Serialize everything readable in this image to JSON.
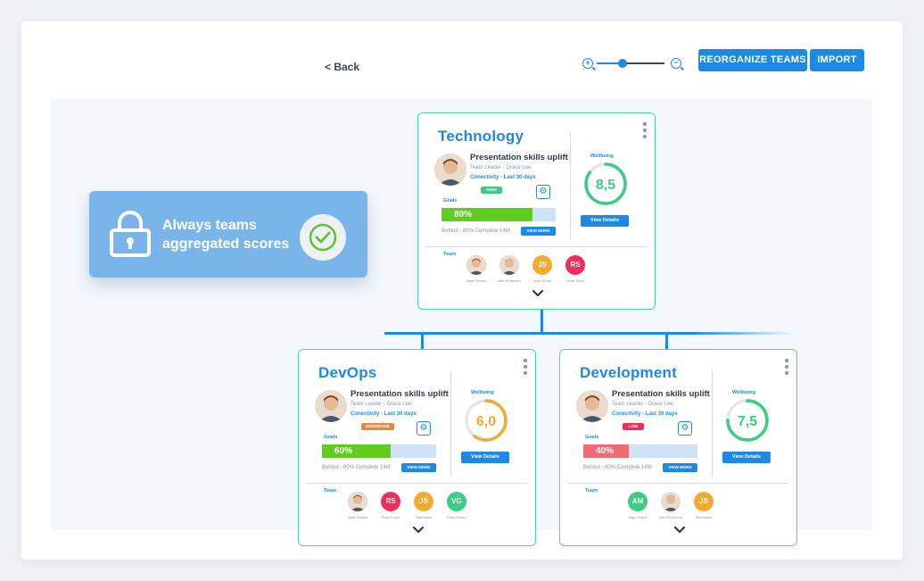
{
  "header": {
    "back_label": "< Back",
    "zoom_level": 0.38,
    "reorganize_label": "REORGANIZE TEAMS",
    "import_label": "IMPORT",
    "zoom_in_icon": "zoom-in-icon",
    "zoom_out_icon": "zoom-out-icon"
  },
  "lock_card": {
    "text_line1": "Always teams",
    "text_line2": "aggregated scores",
    "lock_icon": "lock-icon",
    "check_icon": "check-circle-icon"
  },
  "colors": {
    "accent": "#1e88e5",
    "card_border": "#4cd59a",
    "green": "#3ecb82",
    "orange": "#f2ab30",
    "red": "#ef6a72",
    "lock_card": "#7ab5ea"
  },
  "teams": [
    {
      "title": "Technology",
      "skill": "Presentation skills uplift",
      "leader": "Team Leader - Grace Lee",
      "connectivity": "Conectivity - Last 30 days",
      "badge": "HIGH",
      "badge_color": "#3ecb82",
      "goals_label": "Goals",
      "goal_value": "80%",
      "goal_fraction": 0.8,
      "goal_color": "#5fcc1e",
      "behind": "Behind - 80% Complete 14M",
      "view_more": "VIEW MORE",
      "wellbeing_label": "Wellbeing",
      "wellbeing_value": "8,5",
      "wellbeing_fraction": 0.85,
      "wellbeing_color": "#3ecb82",
      "view_details": "View Details",
      "team_label": "Team",
      "members": [
        {
          "initials": "",
          "name": "Aylee Reese",
          "color": "#b5542d",
          "photo": true
        },
        {
          "initials": "",
          "name": "Alex Pedersen",
          "color": "#c9b39f",
          "photo": true
        },
        {
          "initials": "JS",
          "name": "John Smith",
          "color": "#f2ab30",
          "photo": false
        },
        {
          "initials": "RS",
          "name": "Rose Silva",
          "color": "#ee2d5b",
          "photo": false
        }
      ]
    },
    {
      "title": "DevOps",
      "skill": "Presentation skills uplift",
      "leader": "Team Leader - Grace Lee",
      "connectivity": "Conectivity - Last 30 days",
      "badge": "MODERADE",
      "badge_color": "#e08a3a",
      "goals_label": "Goals",
      "goal_value": "60%",
      "goal_fraction": 0.6,
      "goal_color": "#5fcc1e",
      "behind": "Behind - 80% Complete 14M",
      "view_more": "VIEW MORE",
      "wellbeing_label": "Wellbeing",
      "wellbeing_value": "6,0",
      "wellbeing_fraction": 0.6,
      "wellbeing_color": "#f2ab30",
      "view_details": "View Details",
      "team_label": "Team",
      "members": [
        {
          "initials": "",
          "name": "Aylee Reese",
          "color": "#b5542d",
          "photo": true
        },
        {
          "initials": "RS",
          "name": "Rose Kodal",
          "color": "#ee2d5b",
          "photo": false
        },
        {
          "initials": "JS",
          "name": "Reedback",
          "color": "#f2ab30",
          "photo": false
        },
        {
          "initials": "VG",
          "name": "Vicky Green",
          "color": "#3ecb82",
          "photo": false
        }
      ]
    },
    {
      "title": "Development",
      "skill": "Presentation skills uplift",
      "leader": "Team Leader - Grace Lee",
      "connectivity": "Conectivity - Last 30 days",
      "badge": "LOW",
      "badge_color": "#ee2d5b",
      "goals_label": "Goals",
      "goal_value": "40%",
      "goal_fraction": 0.4,
      "goal_color": "#ef6a72",
      "behind": "Behind - 80% Complete 14M",
      "view_more": "VIEW MORE",
      "wellbeing_label": "Wellbeing",
      "wellbeing_value": "7,5",
      "wellbeing_fraction": 0.75,
      "wellbeing_color": "#3ecb82",
      "view_details": "View Details",
      "team_label": "Team",
      "members": [
        {
          "initials": "AM",
          "name": "Algin Hoper",
          "color": "#3ecb82",
          "photo": false
        },
        {
          "initials": "",
          "name": "Alex Pedersen",
          "color": "#c9b39f",
          "photo": true
        },
        {
          "initials": "JS",
          "name": "Reedback",
          "color": "#f2ab30",
          "photo": false
        }
      ]
    }
  ]
}
